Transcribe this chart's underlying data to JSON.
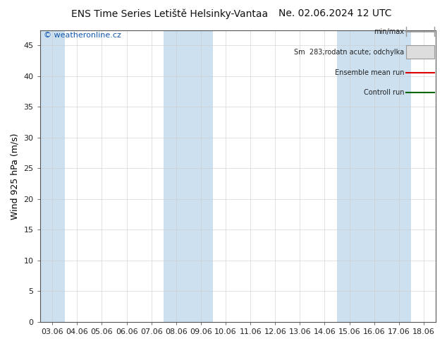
{
  "title": "ENS Time Series Letiště Helsinky-Vantaa",
  "title_right": "Ne. 02.06.2024 12 UTC",
  "ylabel": "Wind 925 hPa (m/s)",
  "watermark": "© weatheronline.cz",
  "ylim": [
    0,
    47.5
  ],
  "yticks": [
    0,
    5,
    10,
    15,
    20,
    25,
    30,
    35,
    40,
    45
  ],
  "xtick_labels": [
    "03.06",
    "04.06",
    "05.06",
    "06.06",
    "07.06",
    "08.06",
    "09.06",
    "10.06",
    "11.06",
    "12.06",
    "13.06",
    "14.06",
    "15.06",
    "16.06",
    "17.06",
    "18.06"
  ],
  "shaded_indices": [
    0,
    5,
    6,
    12,
    13,
    14
  ],
  "band_color": "#cce0f0",
  "bg_color": "#ffffff",
  "plot_bg_color": "#ffffff",
  "grid_color": "#cccccc",
  "legend_minmax_color": "#999999",
  "legend_box_color": "#dddddd",
  "legend_ens_color": "#dd0000",
  "legend_ctrl_color": "#006600",
  "title_fontsize": 10,
  "axis_fontsize": 8,
  "watermark_color": "#1155aa",
  "watermark_fontsize": 8
}
